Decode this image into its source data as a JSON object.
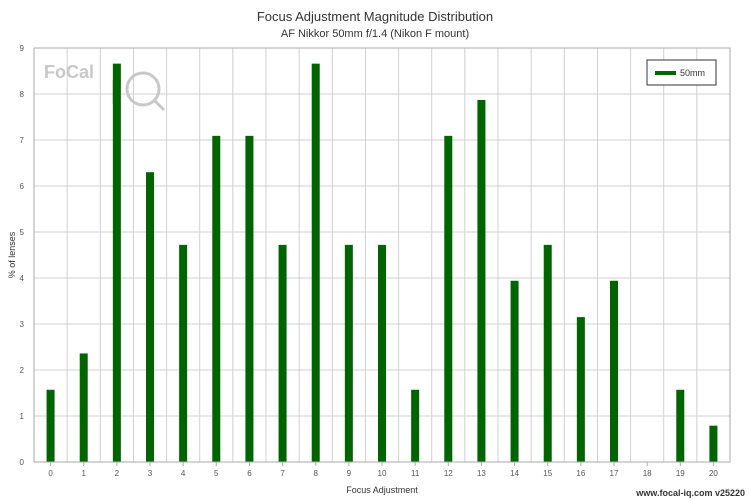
{
  "chart_data": {
    "type": "bar",
    "title": "Focus Adjustment Magnitude Distribution",
    "subtitle": "AF Nikkor 50mm f/1.4 (Nikon F mount)",
    "xlabel": "Focus Adjustment",
    "ylabel": "% of lenses",
    "ylim": [
      0,
      9
    ],
    "y_ticks": [
      "0",
      "1",
      "2",
      "3",
      "4",
      "5",
      "6",
      "7",
      "8",
      "9"
    ],
    "categories": [
      "0",
      "1",
      "2",
      "3",
      "4",
      "5",
      "6",
      "7",
      "8",
      "9",
      "10",
      "11",
      "12",
      "13",
      "14",
      "15",
      "16",
      "17",
      "18",
      "19",
      "20"
    ],
    "series": [
      {
        "name": "50mm",
        "color": "#006400",
        "values": [
          1.57,
          2.36,
          8.66,
          6.3,
          4.72,
          7.09,
          7.09,
          4.72,
          8.66,
          4.72,
          4.72,
          1.57,
          7.09,
          7.87,
          3.94,
          4.72,
          3.15,
          3.94,
          0,
          1.57,
          0.79
        ]
      }
    ],
    "grid": true,
    "legend": "top-right"
  },
  "watermark": {
    "text": "FoCal",
    "icon": "magnifier-iq-icon"
  },
  "credit": "www.focal-iq.com  v25220"
}
